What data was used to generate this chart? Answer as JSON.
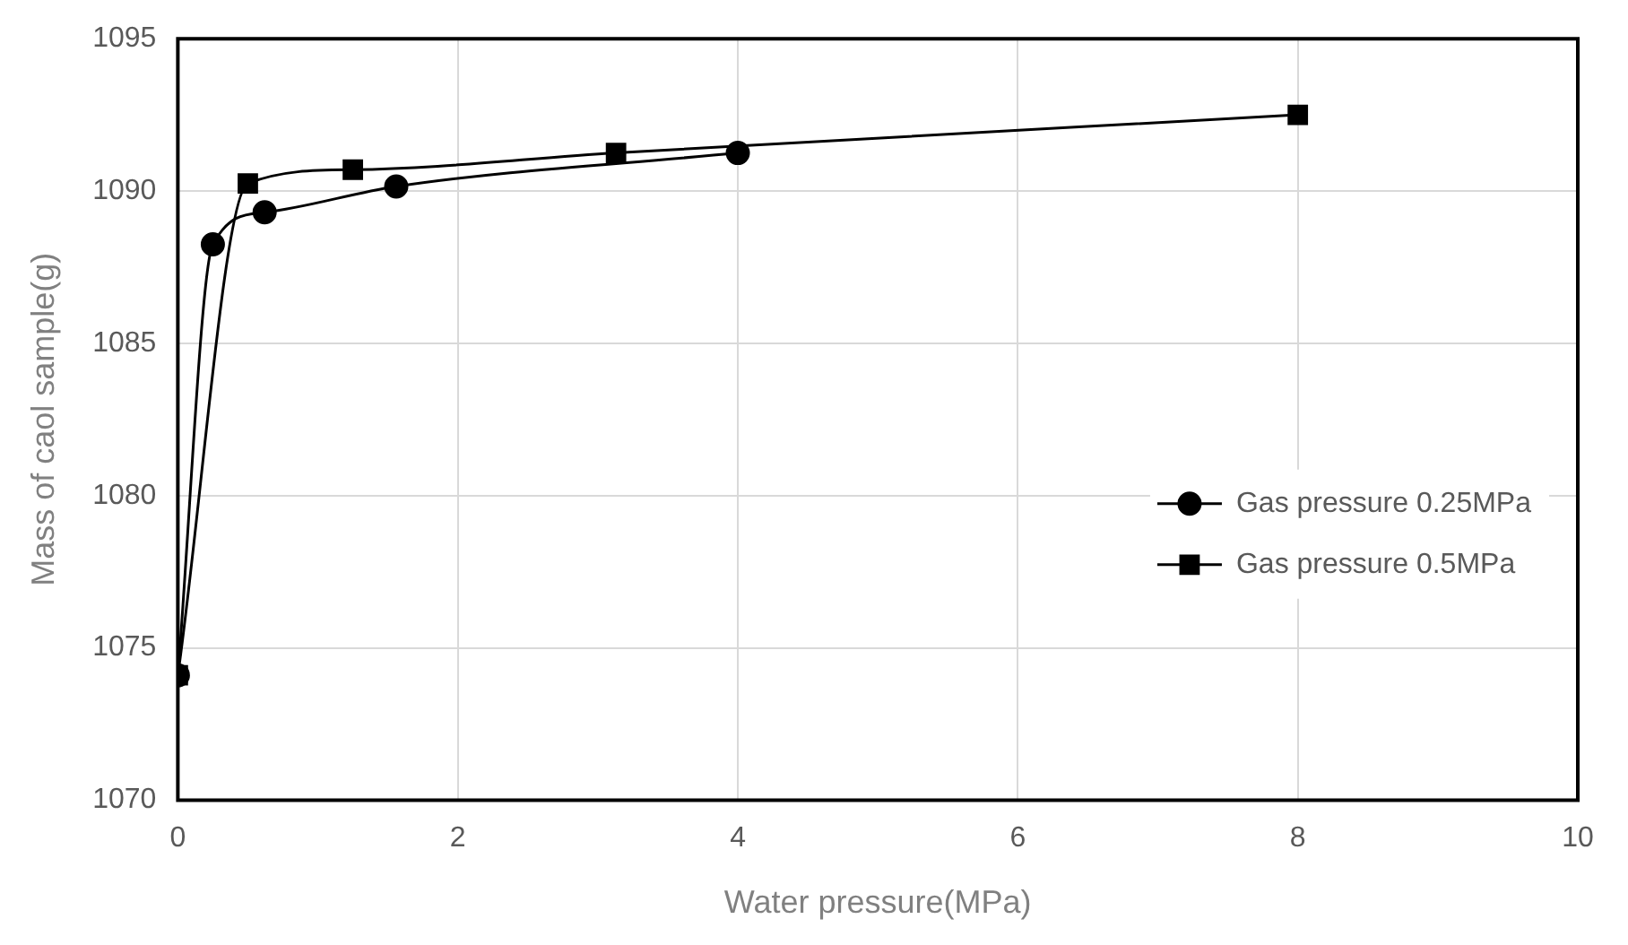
{
  "chart_data": {
    "type": "line",
    "xlabel": "Water pressure(MPa)",
    "ylabel": "Mass of caol sample(g)",
    "xlim": [
      0,
      10
    ],
    "xticks": [
      0,
      2,
      4,
      6,
      8,
      10
    ],
    "ylim": [
      1070,
      1095
    ],
    "yticks": [
      1070,
      1075,
      1080,
      1085,
      1090,
      1095
    ],
    "grid": true,
    "legend": "right",
    "series": [
      {
        "name": "Gas pressure 0.25MPa",
        "color": "#000000",
        "marker": "circle",
        "x": [
          0,
          0.25,
          0.62,
          1.56,
          4
        ],
        "values": [
          1074.1,
          1088.25,
          1089.3,
          1090.15,
          1091.25
        ]
      },
      {
        "name": "Gas pressure 0.5MPa",
        "color": "#000000",
        "marker": "square",
        "x": [
          0,
          0.5,
          1.25,
          3.13,
          8
        ],
        "values": [
          1074.1,
          1090.25,
          1090.7,
          1091.25,
          1092.5
        ]
      }
    ]
  }
}
